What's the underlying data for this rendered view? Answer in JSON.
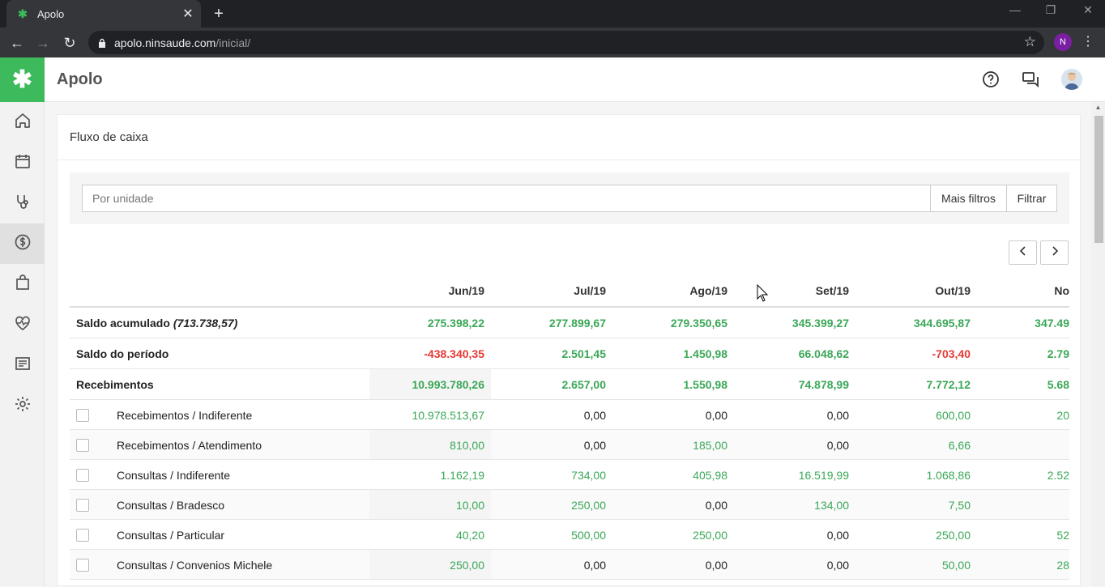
{
  "browser": {
    "tab_title": "Apolo",
    "url_host": "apolo.ninsaude.com",
    "url_path": "/inicial/",
    "profile_initial": "N"
  },
  "app": {
    "name": "Apolo"
  },
  "sidebar": {
    "items": [
      {
        "icon": "home-icon"
      },
      {
        "icon": "calendar-icon"
      },
      {
        "icon": "stethoscope-icon"
      },
      {
        "icon": "dollar-icon",
        "active": true
      },
      {
        "icon": "shopping-bag-icon"
      },
      {
        "icon": "heart-pulse-icon"
      },
      {
        "icon": "report-icon"
      },
      {
        "icon": "settings-icon"
      }
    ]
  },
  "page": {
    "title": "Fluxo de caixa",
    "filter_placeholder": "Por unidade",
    "more_filters_label": "Mais filtros",
    "filter_label": "Filtrar"
  },
  "table": {
    "columns": [
      "Jun/19",
      "Jul/19",
      "Ago/19",
      "Set/19",
      "Out/19",
      "No"
    ],
    "rows": [
      {
        "label": "Saldo acumulado",
        "label_extra": "(713.738,57)",
        "bold": true,
        "checkbox": false,
        "values": [
          "275.398,22",
          "277.899,67",
          "279.350,65",
          "345.399,27",
          "344.695,87",
          "347.49"
        ],
        "signs": [
          "pos",
          "pos",
          "pos",
          "pos",
          "pos",
          "pos"
        ]
      },
      {
        "label": "Saldo do período",
        "label_extra": "",
        "bold": true,
        "checkbox": false,
        "values": [
          "-438.340,35",
          "2.501,45",
          "1.450,98",
          "66.048,62",
          "-703,40",
          "2.79"
        ],
        "signs": [
          "neg",
          "pos",
          "pos",
          "pos",
          "neg",
          "pos"
        ]
      },
      {
        "label": "Recebimentos",
        "label_extra": "",
        "bold": true,
        "checkbox": false,
        "values": [
          "10.993.780,26",
          "2.657,00",
          "1.550,98",
          "74.878,99",
          "7.772,12",
          "5.68"
        ],
        "signs": [
          "pos",
          "pos",
          "pos",
          "pos",
          "pos",
          "pos"
        ]
      },
      {
        "label": "Recebimentos / Indiferente",
        "label_extra": "",
        "bold": false,
        "checkbox": true,
        "values": [
          "10.978.513,67",
          "0,00",
          "0,00",
          "0,00",
          "600,00",
          "20"
        ],
        "signs": [
          "pos",
          "zero",
          "zero",
          "zero",
          "pos",
          "pos"
        ]
      },
      {
        "label": "Recebimentos / Atendimento",
        "label_extra": "",
        "bold": false,
        "checkbox": true,
        "values": [
          "810,00",
          "0,00",
          "185,00",
          "0,00",
          "6,66",
          ""
        ],
        "signs": [
          "pos",
          "zero",
          "pos",
          "zero",
          "pos",
          "pos"
        ]
      },
      {
        "label": "Consultas / Indiferente",
        "label_extra": "",
        "bold": false,
        "checkbox": true,
        "values": [
          "1.162,19",
          "734,00",
          "405,98",
          "16.519,99",
          "1.068,86",
          "2.52"
        ],
        "signs": [
          "pos",
          "pos",
          "pos",
          "pos",
          "pos",
          "pos"
        ]
      },
      {
        "label": "Consultas / Bradesco",
        "label_extra": "",
        "bold": false,
        "checkbox": true,
        "values": [
          "10,00",
          "250,00",
          "0,00",
          "134,00",
          "7,50",
          ""
        ],
        "signs": [
          "pos",
          "pos",
          "zero",
          "pos",
          "pos",
          "pos"
        ]
      },
      {
        "label": "Consultas / Particular",
        "label_extra": "",
        "bold": false,
        "checkbox": true,
        "values": [
          "40,20",
          "500,00",
          "250,00",
          "0,00",
          "250,00",
          "52"
        ],
        "signs": [
          "pos",
          "pos",
          "pos",
          "zero",
          "pos",
          "pos"
        ]
      },
      {
        "label": "Consultas / Convenios Michele",
        "label_extra": "",
        "bold": false,
        "checkbox": true,
        "values": [
          "250,00",
          "0,00",
          "0,00",
          "0,00",
          "50,00",
          "28"
        ],
        "signs": [
          "pos",
          "zero",
          "zero",
          "zero",
          "pos",
          "pos"
        ]
      }
    ]
  },
  "colors": {
    "brand": "#3dba5b",
    "positive": "#3aa757",
    "negative": "#e53935"
  }
}
